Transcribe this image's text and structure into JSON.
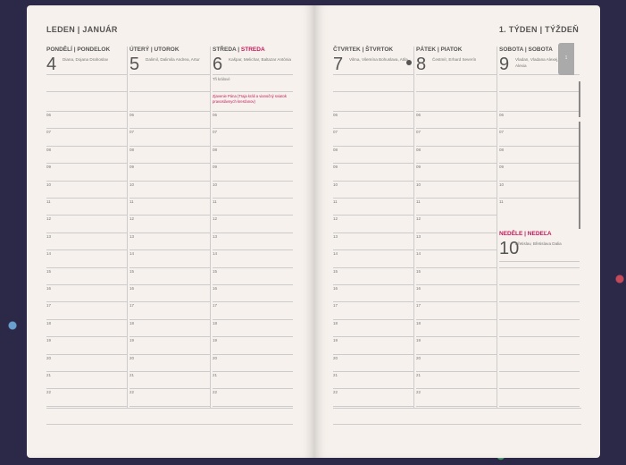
{
  "left_page": {
    "month": "LEDEN | JANUÁR",
    "days": [
      {
        "header": "PONDĚLÍ | PONDELOK",
        "number": "4",
        "names": "Diana, Dojana Drahoslav",
        "red": false
      },
      {
        "header": "ÚTERÝ | UTOROK",
        "number": "5",
        "names": "Dalimil, Dalimila Andrea, Artur",
        "red": false
      },
      {
        "header_cz": "STŘEDA | ",
        "header_sk": "STREDA",
        "number": "6",
        "names": "Kašpar, Melichar, Baltazar Antónia",
        "red": true,
        "note": "Tři králové",
        "note_red": "Zjavenie Pána (Traja králi a vianočný sviatok pravoslávnych kresťanov)"
      }
    ]
  },
  "right_page": {
    "week": "1. TÝDEN | TÝŽDEŇ",
    "tab_label": "1",
    "days": [
      {
        "header": "ČTVRTEK | ŠTVRTOK",
        "number": "7",
        "names": "Vilma, Vilemína Bohuslava, Atila",
        "moon_icon": "full-moon-dot"
      },
      {
        "header": "PÁTEK | PIATOK",
        "number": "8",
        "names": "Čestmír, Erhard Severín"
      },
      {
        "header": "SOBOTA | SOBOTA",
        "number": "9",
        "names": "Vladan, Vladana Alexej, Alex, Alexia"
      },
      {
        "header": "NEDĚLE | NEDEĽA",
        "number": "10",
        "names": "Břetislav, Břetislava Dalia",
        "red": true
      }
    ]
  },
  "hours": [
    "06",
    "07",
    "08",
    "09",
    "10",
    "11",
    "12",
    "13",
    "14",
    "15",
    "16",
    "17",
    "18",
    "19",
    "20",
    "21",
    "22"
  ],
  "colors": {
    "accent": "#c2185b",
    "paper": "#f6f1ec",
    "cover": "#2c2848"
  }
}
